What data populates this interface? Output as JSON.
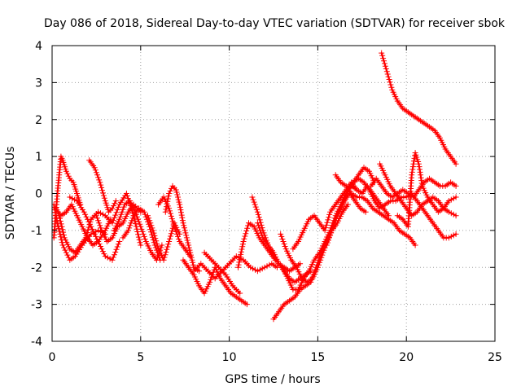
{
  "chart_data": {
    "type": "scatter",
    "title": "Day 086 of 2018, Sidereal Day-to-day VTEC variation (SDTVAR) for receiver sbok",
    "xlabel": "GPS time / hours",
    "ylabel": "SDTVAR / TECUs",
    "xlim": [
      0,
      25
    ],
    "ylim": [
      -4,
      4
    ],
    "xticks": [
      "0",
      "5",
      "10",
      "15",
      "20",
      "25"
    ],
    "yticks": [
      "4",
      "3",
      "2",
      "1",
      "0",
      "-1",
      "-2",
      "-3",
      "-4"
    ],
    "grid": true,
    "marker": "+",
    "color": "#ff0000",
    "series": [
      {
        "name": "s1",
        "x": [
          0.1,
          0.2,
          0.3,
          0.4,
          0.5,
          0.6,
          0.8,
          1.0,
          1.2,
          1.4,
          1.6
        ],
        "y": [
          -1.2,
          -0.6,
          0.0,
          0.5,
          1.0,
          0.9,
          0.6,
          0.4,
          0.3,
          0.0,
          -0.3
        ]
      },
      {
        "name": "s2",
        "x": [
          0.1,
          0.3,
          0.6,
          1.0,
          1.3,
          1.7,
          2.2,
          2.6,
          3.0
        ],
        "y": [
          -0.3,
          -0.8,
          -1.4,
          -1.8,
          -1.7,
          -1.4,
          -1.1,
          -1.0,
          -1.1
        ]
      },
      {
        "name": "s3",
        "x": [
          0.2,
          0.5,
          0.8,
          1.1,
          1.4,
          1.7,
          2.0,
          2.3,
          2.6,
          3.0,
          3.3
        ],
        "y": [
          -0.4,
          -0.6,
          -0.5,
          -0.3,
          -0.6,
          -0.9,
          -1.2,
          -1.4,
          -1.3,
          -1.0,
          -0.7
        ]
      },
      {
        "name": "s4",
        "x": [
          0.4,
          0.7,
          1.0,
          1.3,
          1.6,
          1.9,
          2.2,
          2.6,
          3.0,
          3.4,
          3.8,
          4.2,
          4.6,
          5.0
        ],
        "y": [
          -0.6,
          -1.2,
          -1.5,
          -1.6,
          -1.4,
          -1.2,
          -0.7,
          -0.5,
          -0.6,
          -0.8,
          -0.3,
          0.0,
          -0.6,
          -1.4
        ]
      },
      {
        "name": "s5",
        "x": [
          1.0,
          1.4,
          1.8,
          2.2,
          2.6,
          3.0,
          3.4,
          3.8
        ],
        "y": [
          -0.1,
          -0.2,
          -0.5,
          -0.9,
          -1.3,
          -1.7,
          -1.8,
          -1.3
        ]
      },
      {
        "name": "s6",
        "x": [
          2.1,
          2.4,
          2.7,
          3.0,
          3.2,
          3.4,
          3.6
        ],
        "y": [
          0.9,
          0.7,
          0.3,
          -0.2,
          -0.5,
          -0.4,
          -0.2
        ]
      },
      {
        "name": "s7",
        "x": [
          2.5,
          2.8,
          3.1,
          3.4,
          3.7,
          4.0,
          4.3,
          4.6,
          5.0
        ],
        "y": [
          -0.6,
          -1.0,
          -1.3,
          -1.2,
          -0.9,
          -0.8,
          -0.5,
          -0.3,
          -0.5
        ]
      },
      {
        "name": "s8",
        "x": [
          3.5,
          3.8,
          4.1,
          4.4,
          4.7,
          5.0,
          5.3,
          5.6,
          5.9,
          6.2
        ],
        "y": [
          -1.0,
          -0.7,
          -0.3,
          -0.2,
          -0.5,
          -0.9,
          -1.3,
          -1.6,
          -1.8,
          -1.4
        ]
      },
      {
        "name": "s9",
        "x": [
          4.0,
          4.3,
          4.6,
          4.9,
          5.2,
          5.5,
          5.8,
          6.1
        ],
        "y": [
          -1.2,
          -1.0,
          -0.6,
          -0.4,
          -0.5,
          -0.9,
          -1.4,
          -1.8
        ]
      },
      {
        "name": "s10",
        "x": [
          5.4,
          5.7,
          6.0,
          6.3,
          6.6,
          6.9,
          7.2
        ],
        "y": [
          -0.6,
          -1.0,
          -1.5,
          -1.8,
          -1.3,
          -0.8,
          -1.1
        ]
      },
      {
        "name": "s11",
        "x": [
          6.0,
          6.3,
          6.6,
          6.9,
          7.2,
          7.5,
          7.8
        ],
        "y": [
          -0.3,
          -0.1,
          -0.4,
          -0.9,
          -1.3,
          -1.5,
          -1.7
        ]
      },
      {
        "name": "s12",
        "x": [
          6.4,
          6.6,
          6.8,
          7.0,
          7.2,
          7.4,
          7.6,
          7.8,
          8.0,
          8.3
        ],
        "y": [
          -0.5,
          0.0,
          0.2,
          0.1,
          -0.3,
          -0.8,
          -1.2,
          -1.6,
          -2.0,
          -2.1
        ]
      },
      {
        "name": "s13",
        "x": [
          7.4,
          7.7,
          8.0,
          8.3,
          8.6,
          8.9,
          9.2,
          9.5,
          9.8,
          10.1,
          10.4,
          10.7,
          11.0
        ],
        "y": [
          -1.8,
          -2.0,
          -2.2,
          -2.5,
          -2.7,
          -2.4,
          -2.0,
          -2.3,
          -2.5,
          -2.7,
          -2.8,
          -2.9,
          -3.0
        ]
      },
      {
        "name": "s14",
        "x": [
          8.0,
          8.4,
          8.8,
          9.2,
          9.6,
          10.0,
          10.4,
          10.8,
          11.2,
          11.6,
          12.0,
          12.4,
          12.7
        ],
        "y": [
          -2.1,
          -1.9,
          -2.1,
          -2.3,
          -2.1,
          -1.9,
          -1.7,
          -1.8,
          -2.0,
          -2.1,
          -2.0,
          -1.9,
          -2.0
        ]
      },
      {
        "name": "s15",
        "x": [
          8.6,
          9.0,
          9.4,
          9.8,
          10.2,
          10.6
        ],
        "y": [
          -1.6,
          -1.8,
          -2.0,
          -2.2,
          -2.5,
          -2.7
        ]
      },
      {
        "name": "s16",
        "x": [
          10.5,
          10.8,
          11.1,
          11.4,
          11.7,
          12.0,
          12.3,
          12.6
        ],
        "y": [
          -2.0,
          -1.3,
          -0.8,
          -0.9,
          -1.2,
          -1.4,
          -1.6,
          -1.8
        ]
      },
      {
        "name": "s17",
        "x": [
          11.3,
          11.6,
          11.9,
          12.2,
          12.5,
          12.8,
          13.1,
          13.4,
          13.7,
          14.0
        ],
        "y": [
          -0.1,
          -0.5,
          -1.0,
          -1.4,
          -1.7,
          -1.9,
          -2.0,
          -2.1,
          -2.0,
          -1.9
        ]
      },
      {
        "name": "s18",
        "x": [
          11.6,
          11.9,
          12.2,
          12.5,
          12.8,
          13.1,
          13.4,
          13.7,
          14.0,
          14.3,
          14.6
        ],
        "y": [
          -0.8,
          -1.2,
          -1.4,
          -1.6,
          -1.9,
          -2.1,
          -2.3,
          -2.4,
          -2.3,
          -2.2,
          -2.1
        ]
      },
      {
        "name": "s19",
        "x": [
          12.5,
          12.8,
          13.1,
          13.4,
          13.7,
          14.0,
          14.3,
          14.6,
          14.9,
          15.2,
          15.5,
          15.8,
          16.1,
          16.4,
          16.7
        ],
        "y": [
          -3.4,
          -3.2,
          -3.0,
          -2.9,
          -2.8,
          -2.6,
          -2.5,
          -2.4,
          -2.0,
          -1.6,
          -1.3,
          -1.0,
          -0.8,
          -0.5,
          -0.3
        ]
      },
      {
        "name": "s20",
        "x": [
          12.9,
          13.2,
          13.5,
          13.8,
          14.1,
          14.4,
          14.7,
          15.0,
          15.3,
          15.6,
          15.9,
          16.2,
          16.5,
          16.8,
          17.1,
          17.4,
          17.7
        ],
        "y": [
          -1.1,
          -1.5,
          -1.8,
          -2.0,
          -2.3,
          -2.4,
          -2.3,
          -2.0,
          -1.6,
          -1.2,
          -0.8,
          -0.5,
          -0.2,
          0.0,
          -0.2,
          -0.4,
          -0.5
        ]
      },
      {
        "name": "s21",
        "x": [
          13.0,
          13.3,
          13.6,
          13.9,
          14.2,
          14.5,
          14.8,
          15.1,
          15.4,
          15.7,
          16.0,
          16.3,
          16.6,
          16.9,
          17.2
        ],
        "y": [
          -2.0,
          -2.3,
          -2.6,
          -2.6,
          -2.3,
          -2.1,
          -1.8,
          -1.6,
          -1.3,
          -1.0,
          -0.6,
          -0.3,
          0.0,
          0.2,
          0.1
        ]
      },
      {
        "name": "s22",
        "x": [
          13.6,
          13.9,
          14.2,
          14.5,
          14.8,
          15.1,
          15.4,
          15.7,
          16.0,
          16.3,
          16.6,
          16.9,
          17.2,
          17.5,
          17.8,
          18.1,
          18.4,
          18.7,
          19.0
        ],
        "y": [
          -1.5,
          -1.3,
          -1.0,
          -0.7,
          -0.6,
          -0.8,
          -1.0,
          -0.5,
          -0.3,
          -0.1,
          0.1,
          0.3,
          0.1,
          0.0,
          0.2,
          0.0,
          -0.2,
          -0.4,
          -0.6
        ]
      },
      {
        "name": "s23",
        "x": [
          15.5,
          15.8,
          16.1,
          16.4,
          16.7,
          17.0,
          17.3,
          17.6,
          17.9,
          18.2
        ],
        "y": [
          -1.4,
          -1.0,
          -0.6,
          -0.3,
          0.1,
          0.3,
          0.5,
          0.7,
          0.6,
          0.3
        ]
      },
      {
        "name": "s24",
        "x": [
          16.0,
          16.3,
          16.6,
          16.9,
          17.2,
          17.5,
          17.8,
          18.1,
          18.4,
          18.7,
          19.0,
          19.3,
          19.6,
          19.9,
          20.2,
          20.5
        ],
        "y": [
          0.5,
          0.3,
          0.2,
          0.0,
          -0.1,
          -0.1,
          -0.2,
          -0.4,
          -0.5,
          -0.6,
          -0.7,
          -0.8,
          -1.0,
          -1.1,
          -1.2,
          -1.4
        ]
      },
      {
        "name": "s25",
        "x": [
          17.0,
          17.3,
          17.6,
          17.9,
          18.2,
          18.5,
          18.8,
          19.1,
          19.4,
          19.7,
          20.0,
          20.3,
          20.6,
          20.9,
          21.2,
          21.5,
          21.8,
          22.1,
          22.4,
          22.8
        ],
        "y": [
          0.3,
          0.4,
          0.3,
          0.1,
          -0.2,
          -0.4,
          -0.3,
          -0.2,
          -0.2,
          -0.1,
          -0.1,
          0.0,
          -0.2,
          -0.4,
          -0.6,
          -0.8,
          -1.0,
          -1.2,
          -1.2,
          -1.1
        ]
      },
      {
        "name": "s26",
        "x": [
          18.0,
          18.3,
          18.6,
          18.9,
          19.2,
          19.5,
          19.8,
          20.1,
          20.4,
          20.7,
          21.0,
          21.3,
          21.6,
          21.9,
          22.2,
          22.5,
          22.8
        ],
        "y": [
          0.2,
          0.4,
          0.2,
          0.0,
          -0.1,
          0.0,
          0.1,
          0.0,
          -0.1,
          0.1,
          0.3,
          0.4,
          0.3,
          0.2,
          0.2,
          0.3,
          0.2
        ]
      },
      {
        "name": "s27",
        "x": [
          18.5,
          18.8,
          19.1,
          19.4,
          19.7,
          20.0,
          20.3,
          20.6,
          20.9,
          21.2,
          21.5,
          21.8,
          22.1,
          22.4,
          22.8
        ],
        "y": [
          0.8,
          0.5,
          0.2,
          0.0,
          -0.2,
          -0.4,
          -0.6,
          -0.5,
          -0.3,
          -0.2,
          -0.1,
          -0.2,
          -0.4,
          -0.5,
          -0.6
        ]
      },
      {
        "name": "s28",
        "x": [
          18.6,
          18.9,
          19.2,
          19.5,
          19.8,
          20.1,
          20.4,
          20.7,
          21.0,
          21.3,
          21.6,
          21.9,
          22.2,
          22.5,
          22.8
        ],
        "y": [
          3.8,
          3.3,
          2.8,
          2.5,
          2.3,
          2.2,
          2.1,
          2.0,
          1.9,
          1.8,
          1.7,
          1.5,
          1.2,
          1.0,
          0.8
        ]
      },
      {
        "name": "s29",
        "x": [
          19.5,
          19.8,
          20.1,
          20.3,
          20.5,
          20.7,
          20.9,
          21.2,
          21.5,
          21.8,
          22.1,
          22.4,
          22.8
        ],
        "y": [
          -0.6,
          -0.7,
          -0.9,
          0.5,
          1.1,
          0.8,
          0.2,
          -0.1,
          -0.3,
          -0.5,
          -0.4,
          -0.2,
          -0.1
        ]
      }
    ]
  }
}
